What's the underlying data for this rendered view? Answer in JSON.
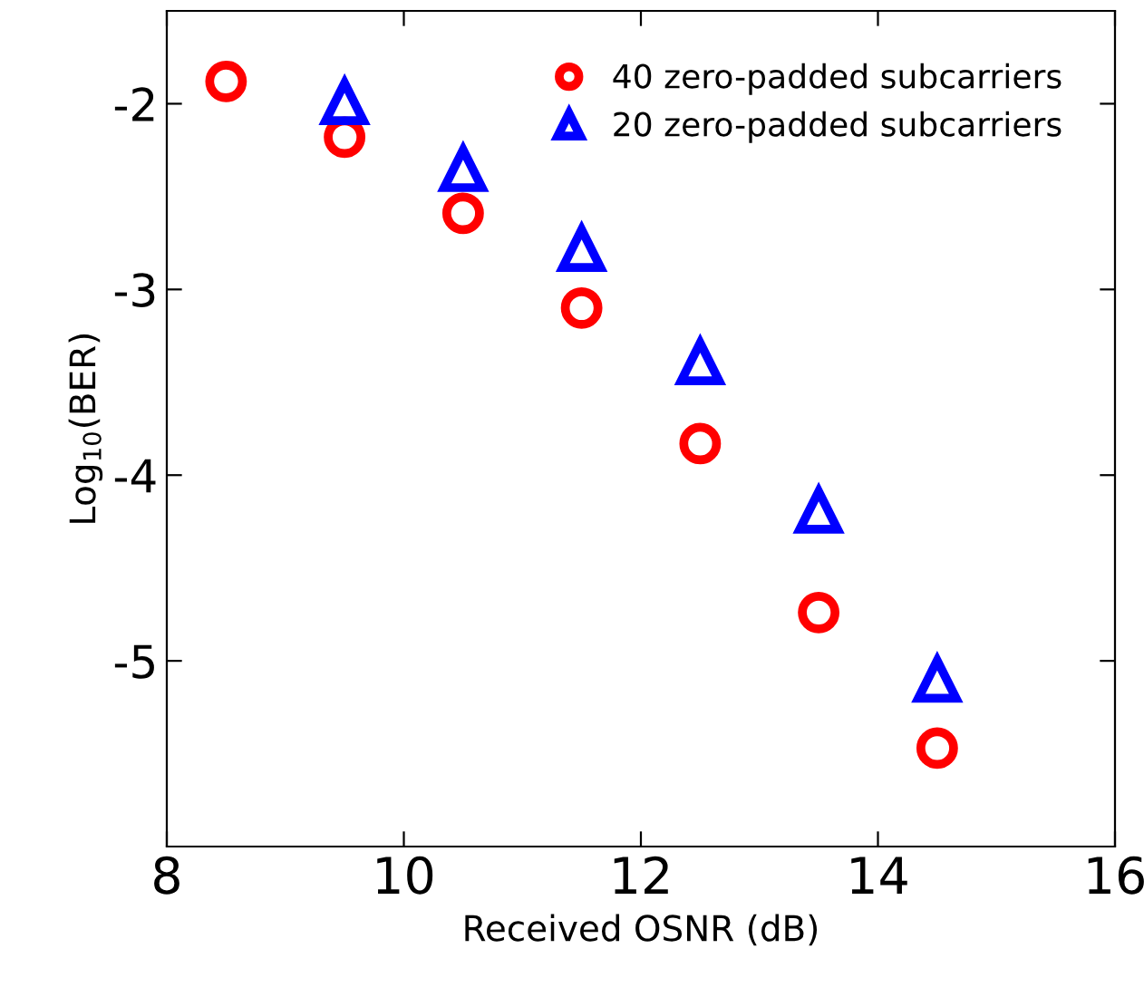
{
  "chart_data": {
    "type": "scatter",
    "xlabel": "Received OSNR (dB)",
    "ylabel": "Log$_{10}$(BER)",
    "x": [
      8.5,
      9.5,
      10.5,
      11.5,
      12.5,
      13.5,
      14.5
    ],
    "series": [
      {
        "name": "40 zero-padded subcarriers",
        "color": "#ff0000",
        "marker": "circle",
        "values": [
          -1.88,
          -2.18,
          -2.59,
          -3.1,
          -3.83,
          -4.74,
          -5.47
        ]
      },
      {
        "name": "20 zero-padded subcarriers",
        "color": "#0000ff",
        "marker": "triangle",
        "values": [
          null,
          -1.99,
          -2.35,
          -2.78,
          -3.39,
          -4.19,
          -5.1
        ]
      }
    ],
    "xlim": [
      8,
      16
    ],
    "xticks": [
      8,
      10,
      12,
      14,
      16
    ],
    "ylim": [
      -6,
      -1.5
    ],
    "yticks": [
      -2,
      -3,
      -4,
      -5
    ],
    "grid": false,
    "legend": "top right"
  }
}
